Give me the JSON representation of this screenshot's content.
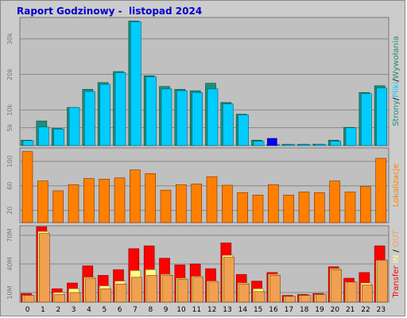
{
  "title": "Raport Godzinowy -  listopad 2024",
  "colors": {
    "background": "#cccccc",
    "plot": "#c0c0c0",
    "strony": "#1f8f78",
    "pliki": "#00ccff",
    "wywolania": "#0000ff",
    "lokalizacje": "#ff8000",
    "transfer": "#ff0000",
    "in": "#ffff88",
    "out": "#f0a050"
  },
  "chart_data": [
    {
      "type": "bar",
      "panel": "top",
      "categories": [
        "0",
        "1",
        "2",
        "3",
        "4",
        "5",
        "6",
        "7",
        "8",
        "9",
        "10",
        "11",
        "12",
        "13",
        "14",
        "15",
        "16",
        "17",
        "18",
        "19",
        "20",
        "21",
        "22",
        "23"
      ],
      "yticks": [
        "5k",
        "10k",
        "20k",
        "30k"
      ],
      "ylabel_parts": [
        "Strony",
        "/",
        "Pliki",
        "/",
        "Wywołania"
      ],
      "ylim": [
        0,
        36000
      ],
      "ytick_values": [
        5000,
        10000,
        20000,
        30000
      ],
      "series": [
        {
          "name": "Strony",
          "values": [
            1500,
            6900,
            4800,
            10700,
            15800,
            17700,
            20800,
            35000,
            19600,
            16600,
            15800,
            15400,
            17500,
            12100,
            8800,
            1500,
            350,
            330,
            330,
            400,
            1500,
            5100,
            14900,
            16800
          ]
        },
        {
          "name": "Pliki",
          "values": [
            1400,
            5200,
            4600,
            10700,
            15200,
            17200,
            20500,
            34800,
            19300,
            15900,
            15400,
            14900,
            15900,
            11700,
            8600,
            1200,
            300,
            280,
            280,
            350,
            1200,
            5000,
            14600,
            16200
          ]
        },
        {
          "name": "Wywołania",
          "values": [
            0,
            0,
            0,
            0,
            0,
            0,
            0,
            0,
            0,
            0,
            0,
            0,
            0,
            0,
            0,
            0,
            2000,
            0,
            0,
            0,
            0,
            0,
            0,
            0
          ]
        }
      ]
    },
    {
      "type": "bar",
      "panel": "middle",
      "categories": [
        "0",
        "1",
        "2",
        "3",
        "4",
        "5",
        "6",
        "7",
        "8",
        "9",
        "10",
        "11",
        "12",
        "13",
        "14",
        "15",
        "16",
        "17",
        "18",
        "19",
        "20",
        "21",
        "22",
        "23"
      ],
      "yticks": [
        "20",
        "60",
        "100"
      ],
      "ytick_values": [
        20,
        60,
        100
      ],
      "ylabel": "Lokalizacje",
      "ylim": [
        0,
        122
      ],
      "series": [
        {
          "name": "Lokalizacje",
          "values": [
            116,
            68,
            52,
            62,
            72,
            71,
            73,
            86,
            80,
            53,
            62,
            63,
            75,
            61,
            49,
            45,
            62,
            45,
            50,
            49,
            68,
            50,
            59,
            105
          ]
        }
      ]
    },
    {
      "type": "bar",
      "panel": "bottom",
      "categories": [
        "0",
        "1",
        "2",
        "3",
        "4",
        "5",
        "6",
        "7",
        "8",
        "9",
        "10",
        "11",
        "12",
        "13",
        "14",
        "15",
        "16",
        "17",
        "18",
        "19",
        "20",
        "21",
        "22",
        "23"
      ],
      "yticks": [
        "10M",
        "40M",
        "70M"
      ],
      "ytick_values": [
        10,
        40,
        70
      ],
      "ylabel_parts": [
        "Transfer",
        "IN",
        "OUT"
      ],
      "ylim": [
        0,
        80
      ],
      "series": [
        {
          "name": "Transfer",
          "values": [
            9,
            79,
            14,
            20,
            38,
            28,
            34,
            56,
            59,
            46,
            39,
            40,
            35,
            62,
            29,
            22,
            31,
            7,
            8,
            9,
            37,
            25,
            31,
            59
          ]
        },
        {
          "name": "IN",
          "values": [
            7,
            74,
            10,
            14,
            26,
            17,
            22,
            33,
            34,
            29,
            25,
            27,
            22,
            49,
            20,
            14,
            29,
            6,
            7,
            8,
            35,
            21,
            20,
            44
          ]
        },
        {
          "name": "OUT",
          "values": [
            7,
            72,
            8,
            10,
            25,
            14,
            19,
            26,
            28,
            28,
            24,
            26,
            21,
            47,
            19,
            11,
            28,
            6,
            7,
            8,
            34,
            21,
            18,
            44
          ]
        }
      ]
    }
  ]
}
